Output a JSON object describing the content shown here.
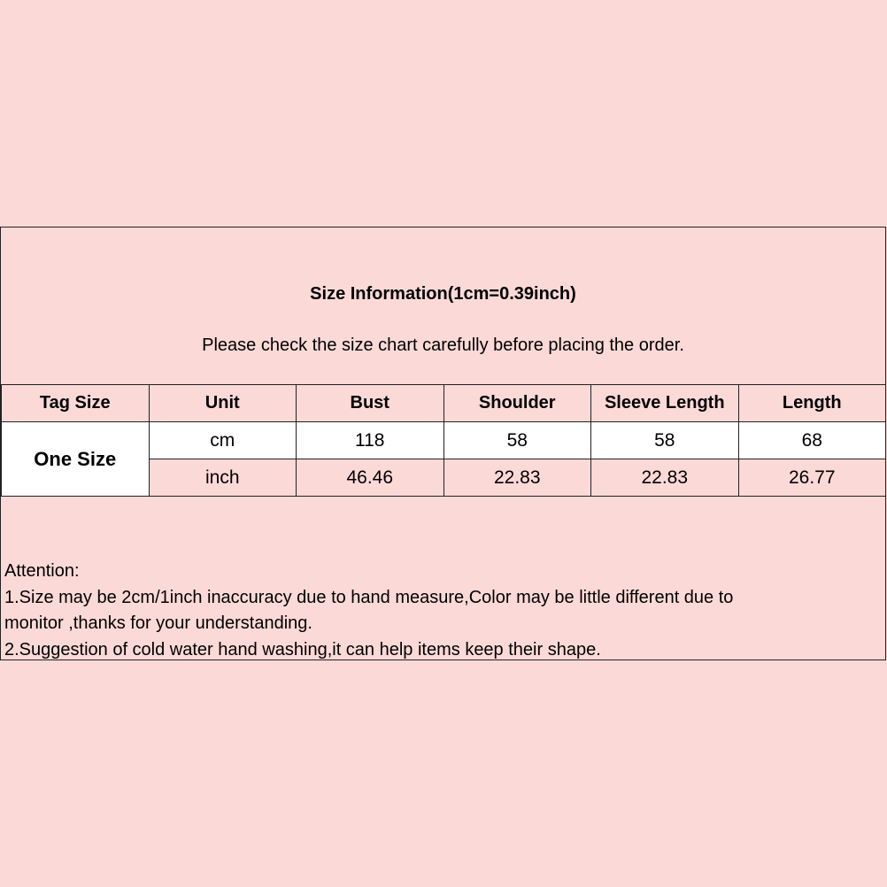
{
  "title": "Size Information(1cm=0.39inch)",
  "subtitle": "Please check the size chart carefully before placing the order.",
  "table": {
    "headers": [
      "Tag Size",
      "Unit",
      "Bust",
      "Shoulder",
      "Sleeve Length",
      "Length"
    ],
    "tag_size": "One Size",
    "rows": [
      {
        "unit": "cm",
        "values": [
          "118",
          "58",
          "58",
          "68"
        ]
      },
      {
        "unit": "inch",
        "values": [
          "46.46",
          "22.83",
          "22.83",
          "26.77"
        ]
      }
    ]
  },
  "attention": {
    "heading": "Attention:",
    "lines": [
      "1.Size may be 2cm/1inch inaccuracy due to hand measure,Color may be little different due to",
      "monitor ,thanks for your understanding.",
      "2.Suggestion of cold water hand washing,it can help items keep their shape."
    ]
  }
}
